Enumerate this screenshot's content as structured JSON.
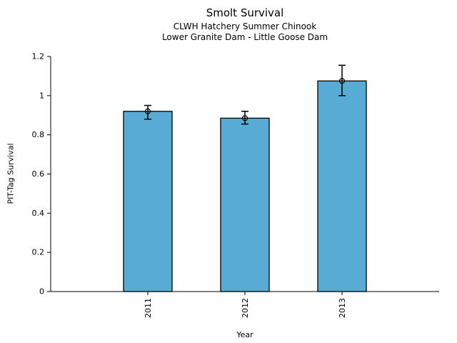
{
  "chart_data": {
    "type": "bar",
    "title": "Smolt Survival",
    "subtitle": [
      "CLWH Hatchery Summer Chinook",
      "Lower Granite Dam - Little Goose Dam"
    ],
    "categories": [
      "2011",
      "2012",
      "2013"
    ],
    "values": [
      0.92,
      0.885,
      1.075
    ],
    "error_low": [
      0.88,
      0.855,
      1.0
    ],
    "error_high": [
      0.95,
      0.92,
      1.155
    ],
    "xlabel": "Year",
    "ylabel": "PIT-Tag Survival",
    "ylim": [
      0,
      1.2
    ],
    "yticks": [
      0,
      0.2,
      0.4,
      0.6,
      0.8,
      1,
      1.2
    ],
    "ytick_labels": [
      "0",
      "0.2",
      "0.4",
      "0.6",
      "0.8",
      "1",
      "1.2"
    ],
    "grid": false,
    "legend": null,
    "marker": "open-circle",
    "bar_color": "#58ABD5",
    "bar_edge_color": "#000000",
    "error_color": "#000000",
    "axis_color": "#000000",
    "background": "#ffffff"
  }
}
